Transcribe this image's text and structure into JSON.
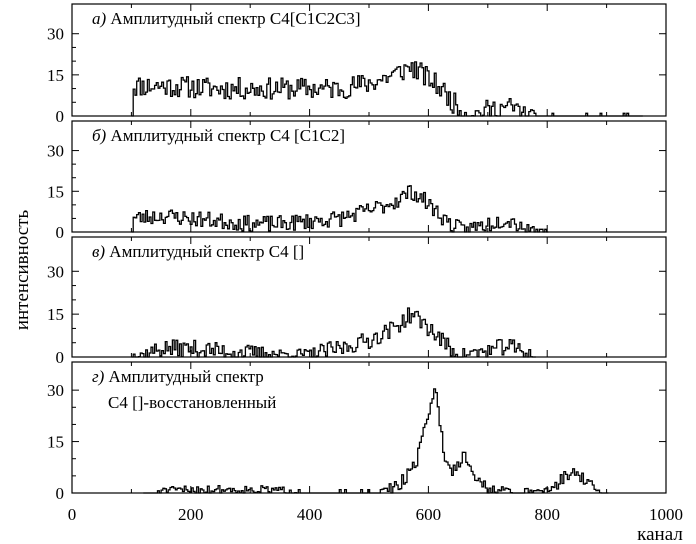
{
  "chart_data": {
    "type": "line",
    "x_label": "канал",
    "y_label": "интенсивность",
    "xlim": [
      0,
      1000
    ],
    "x_ticks": [
      0,
      200,
      400,
      600,
      800,
      1000
    ],
    "panels": [
      {
        "letter": "а)",
        "title": "Амплитудный спектр C4[C1C2C3]",
        "title_line2": "",
        "ylim": [
          0,
          35
        ],
        "y_ticks": [
          0,
          15,
          30
        ],
        "profile": [
          [
            100,
            0
          ],
          [
            102,
            11
          ],
          [
            150,
            11
          ],
          [
            250,
            10
          ],
          [
            350,
            10
          ],
          [
            450,
            10
          ],
          [
            500,
            12
          ],
          [
            540,
            15
          ],
          [
            570,
            18
          ],
          [
            590,
            15
          ],
          [
            620,
            10
          ],
          [
            640,
            5
          ],
          [
            660,
            1
          ],
          [
            680,
            1
          ],
          [
            700,
            2
          ],
          [
            720,
            3
          ],
          [
            740,
            3
          ],
          [
            760,
            1
          ],
          [
            780,
            0.5
          ],
          [
            950,
            0.3
          ],
          [
            960,
            0
          ]
        ],
        "noise": 4,
        "seed": 11
      },
      {
        "letter": "б)",
        "title": "Амплитудный спектр C4 [C1C2]",
        "title_line2": "",
        "ylim": [
          0,
          35
        ],
        "y_ticks": [
          0,
          15,
          30
        ],
        "profile": [
          [
            100,
            0
          ],
          [
            102,
            5
          ],
          [
            150,
            6
          ],
          [
            200,
            5
          ],
          [
            250,
            4
          ],
          [
            300,
            3
          ],
          [
            350,
            3
          ],
          [
            400,
            4
          ],
          [
            450,
            5
          ],
          [
            500,
            8
          ],
          [
            540,
            11
          ],
          [
            570,
            15
          ],
          [
            590,
            12
          ],
          [
            620,
            6
          ],
          [
            640,
            2
          ],
          [
            660,
            1
          ],
          [
            700,
            3
          ],
          [
            730,
            5
          ],
          [
            760,
            2
          ],
          [
            780,
            0.5
          ],
          [
            800,
            0
          ]
        ],
        "noise": 3,
        "seed": 23
      },
      {
        "letter": "в)",
        "title": "Амплитудный спектр C4 []",
        "title_line2": "",
        "ylim": [
          0,
          35
        ],
        "y_ticks": [
          0,
          15,
          30
        ],
        "profile": [
          [
            100,
            0
          ],
          [
            120,
            1
          ],
          [
            150,
            3
          ],
          [
            200,
            3
          ],
          [
            250,
            2
          ],
          [
            300,
            1.5
          ],
          [
            350,
            1
          ],
          [
            400,
            1
          ],
          [
            450,
            3
          ],
          [
            500,
            6
          ],
          [
            540,
            10
          ],
          [
            570,
            15
          ],
          [
            590,
            12
          ],
          [
            620,
            6
          ],
          [
            640,
            2
          ],
          [
            660,
            1
          ],
          [
            700,
            2
          ],
          [
            730,
            4
          ],
          [
            760,
            2
          ],
          [
            780,
            0
          ]
        ],
        "noise": 3,
        "seed": 37
      },
      {
        "letter": "г)",
        "title": "Амплитудный спектр",
        "title_line2": "C4 []-восстановленный",
        "ylim": [
          0,
          35
        ],
        "y_ticks": [
          0,
          15,
          30
        ],
        "profile": [
          [
            120,
            0
          ],
          [
            130,
            0.5
          ],
          [
            200,
            1
          ],
          [
            300,
            1
          ],
          [
            400,
            0.5
          ],
          [
            520,
            0.5
          ],
          [
            550,
            2
          ],
          [
            580,
            10
          ],
          [
            600,
            25
          ],
          [
            610,
            30
          ],
          [
            625,
            12
          ],
          [
            640,
            6
          ],
          [
            660,
            12
          ],
          [
            680,
            4
          ],
          [
            700,
            1
          ],
          [
            750,
            0.5
          ],
          [
            800,
            1
          ],
          [
            820,
            3
          ],
          [
            840,
            7
          ],
          [
            860,
            4
          ],
          [
            880,
            1
          ],
          [
            900,
            0
          ]
        ],
        "noise": 2,
        "seed": 51
      }
    ]
  }
}
